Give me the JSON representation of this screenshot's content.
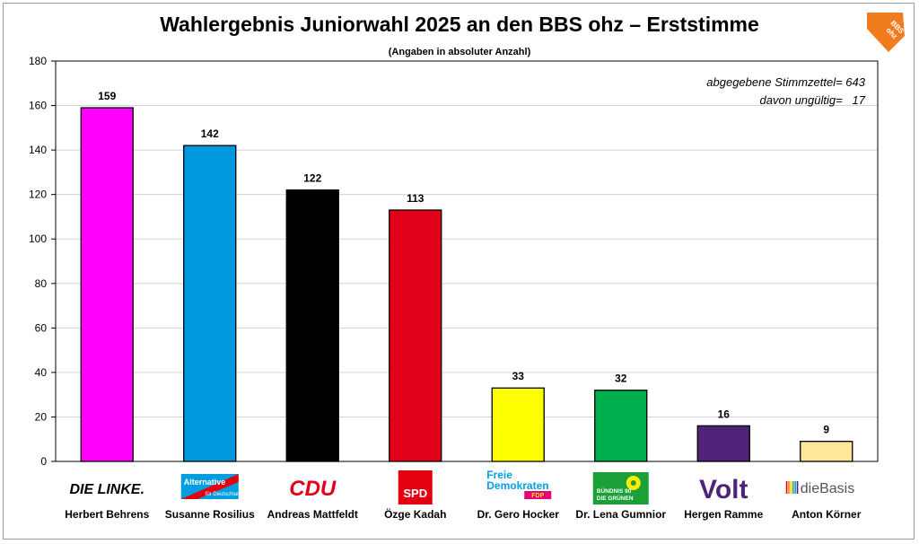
{
  "title": "Wahlergebnis Juniorwahl 2025 an den BBS ohz – Erststimme",
  "subtitle": "(Angaben in absoluter Anzahl)",
  "brand_logo_text": "BBS ohz",
  "annotations": {
    "ballots": "abgegebene Stimmzettel= 643",
    "invalid": "davon ungültig=   17"
  },
  "chart_data": {
    "type": "bar",
    "title": "Wahlergebnis Juniorwahl 2025 an den BBS ohz – Erststimme",
    "subtitle": "(Angaben in absoluter Anzahl)",
    "categories": [
      "Herbert Behrens",
      "Susanne Rosilius",
      "Andreas Mattfeldt",
      "Özge Kadah",
      "Dr. Gero Hocker",
      "Dr. Lena Gumnior",
      "Hergen Ramme",
      "Anton Körner"
    ],
    "parties": [
      "DIE LINKE.",
      "Alternative für Deutschland",
      "CDU",
      "SPD",
      "Freie Demokraten FDP",
      "BÜNDNIS 90 DIE GRÜNEN",
      "Volt",
      "dieBasis"
    ],
    "values": [
      159,
      142,
      122,
      113,
      33,
      32,
      16,
      9
    ],
    "colors": [
      "#ff00ff",
      "#0099e0",
      "#000000",
      "#e2001a",
      "#ffff00",
      "#00b04f",
      "#502379",
      "#ffe699"
    ],
    "ylim": [
      0,
      180
    ],
    "yticks": [
      0,
      20,
      40,
      60,
      80,
      100,
      120,
      140,
      160,
      180
    ],
    "grid": true,
    "legend": "none"
  }
}
